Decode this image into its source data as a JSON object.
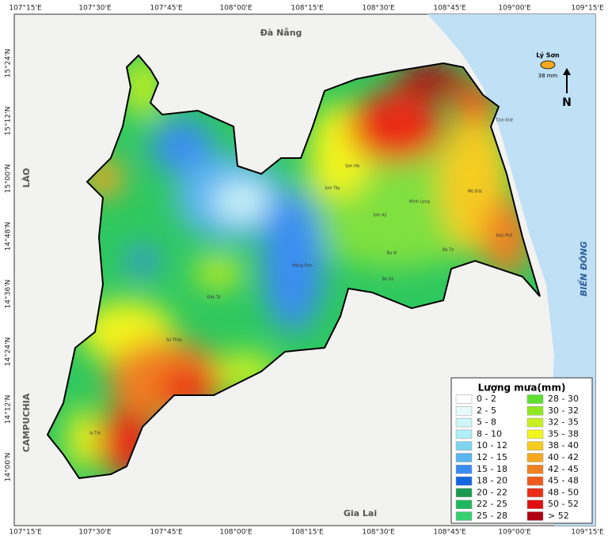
{
  "coordinates": {
    "longitudes": [
      "107°15'E",
      "107°30'E",
      "107°45'E",
      "108°00'E",
      "108°15'E",
      "108°30'E",
      "108°45'E",
      "109°00'E",
      "109°15'E"
    ],
    "latitudes": [
      "15°24'N",
      "15°12'N",
      "15°00'N",
      "14°48'N",
      "14°36'N",
      "14°24'N",
      "14°12'N",
      "14°00'N"
    ]
  },
  "places": {
    "da_nang": "Đà Nẵng",
    "lao": "LÀO",
    "campuchia": "CAMPUCHIA",
    "gia_lai": "Gia Lai",
    "bien_dong": "BIỂN ĐÔNG"
  },
  "island": {
    "name": "Lý Sơn",
    "rainfall": "38 mm"
  },
  "north_arrow": "N",
  "communes": [
    "Sơn Hà",
    "Sơn Tây",
    "Minh Long",
    "Mộ Đức",
    "Đức Phổ",
    "Ba Tơ",
    "Ba Vì",
    "Sơn Kỳ",
    "Ba Xa",
    "Tịnh Khê",
    "Măng Đen",
    "Đăk Tô",
    "Sa Thầy",
    "Ia Tơi"
  ],
  "legend": {
    "title": "Lượng mưa(mm)",
    "items": [
      {
        "label": "0 - 2",
        "color": "#ffffff"
      },
      {
        "label": "2 - 5",
        "color": "#e6fbfb"
      },
      {
        "label": "5 - 8",
        "color": "#cff5f7"
      },
      {
        "label": "8 - 10",
        "color": "#b0eef5"
      },
      {
        "label": "10 - 12",
        "color": "#80d4f0"
      },
      {
        "label": "12 - 15",
        "color": "#5ab4f0"
      },
      {
        "label": "15 - 18",
        "color": "#3a8df0"
      },
      {
        "label": "18 - 20",
        "color": "#1565e0"
      },
      {
        "label": "20 - 22",
        "color": "#1a9a50"
      },
      {
        "label": "22 - 25",
        "color": "#1fb860"
      },
      {
        "label": "25 - 28",
        "color": "#35d070"
      },
      {
        "label": "28 - 30",
        "color": "#5de030"
      },
      {
        "label": "30 - 32",
        "color": "#90e820"
      },
      {
        "label": "32 - 35",
        "color": "#c8f020"
      },
      {
        "label": "35 - 38",
        "color": "#f2f51a"
      },
      {
        "label": "38 - 40",
        "color": "#f5cc20"
      },
      {
        "label": "40 - 42",
        "color": "#f5a820"
      },
      {
        "label": "42 - 45",
        "color": "#f08020"
      },
      {
        "label": "45 - 48",
        "color": "#ee5a1a"
      },
      {
        "label": "48 - 50",
        "color": "#ea2c16"
      },
      {
        "label": "50 - 52",
        "color": "#e01010"
      },
      {
        "label": "> 52",
        "color": "#b00010"
      }
    ]
  }
}
